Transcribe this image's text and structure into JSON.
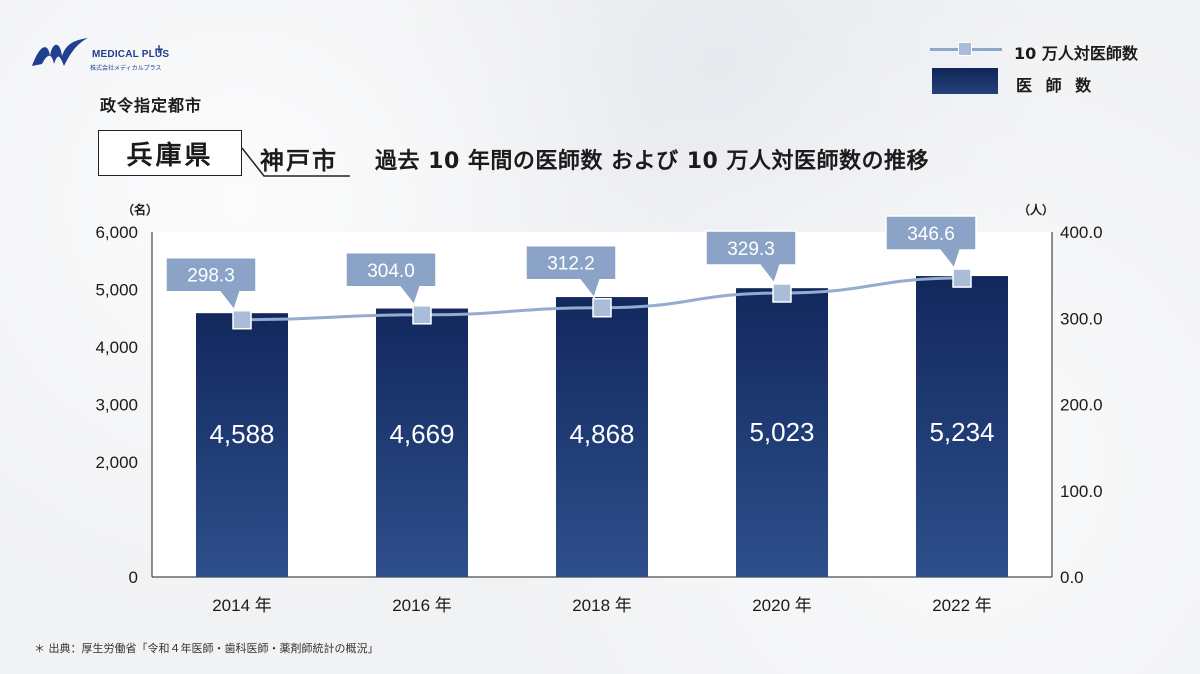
{
  "brand": {
    "name": "MEDICAL PLUS",
    "plus": "+",
    "sub": "株式会社メディカルプラス"
  },
  "header": {
    "category": "政令指定都市",
    "prefecture": "兵庫県",
    "city": "神戸市",
    "title": "過去 10 年間の医師数 および 10 万人対医師数の推移"
  },
  "legend": {
    "line_label": "10 万人対医師数",
    "bar_label": "医 師 数"
  },
  "colors": {
    "bar_top": "#12285d",
    "bar_bottom": "#2e4f8c",
    "line": "#94acd0",
    "marker": "#a9bdd8",
    "callout": "#8aa3c7"
  },
  "source": "＊ 出典：厚生労働省「令和４年医師・歯科医師・薬剤師統計の概況」",
  "chart_data": {
    "type": "bar",
    "categories": [
      "2014 年",
      "2016 年",
      "2018 年",
      "2020 年",
      "2022 年"
    ],
    "series": [
      {
        "name": "医 師 数",
        "type": "bar",
        "axis": "left",
        "values": [
          4588,
          4669,
          4868,
          5023,
          5234
        ],
        "labels": [
          "4,588",
          "4,669",
          "4,868",
          "5,023",
          "5,234"
        ]
      },
      {
        "name": "10 万人対医師数",
        "type": "line",
        "axis": "right",
        "values": [
          298.3,
          304.0,
          312.2,
          329.3,
          346.6
        ],
        "labels": [
          "298.3",
          "304.0",
          "312.2",
          "329.3",
          "346.6"
        ]
      }
    ],
    "y_left": {
      "unit": "（名）",
      "ylim": [
        0,
        6000
      ],
      "ticks": [
        "0",
        "2,000",
        "3,000",
        "4,000",
        "5,000",
        "6,000"
      ],
      "tick_values": [
        0,
        2000,
        3000,
        4000,
        5000,
        6000
      ]
    },
    "y_right": {
      "unit": "（人）",
      "ylim": [
        0,
        400
      ],
      "ticks": [
        "0.0",
        "100.0",
        "200.0",
        "300.0",
        "400.0"
      ],
      "tick_values": [
        0,
        100,
        200,
        300,
        400
      ]
    }
  }
}
